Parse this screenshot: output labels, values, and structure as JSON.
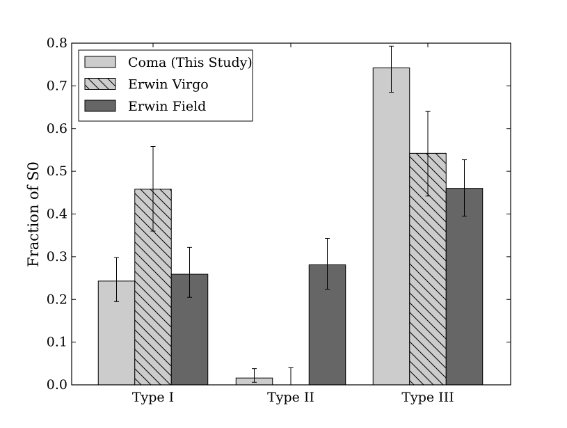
{
  "chart_data": {
    "type": "bar",
    "categories": [
      "Type I",
      "Type II",
      "Type III"
    ],
    "ylabel": "Fraction of S0",
    "xlabel": "",
    "ylim": [
      0,
      0.8
    ],
    "yticks": [
      "0.0",
      "0.1",
      "0.2",
      "0.3",
      "0.4",
      "0.5",
      "0.6",
      "0.7",
      "0.8"
    ],
    "legend_position": "top-left",
    "grid": false,
    "series": [
      {
        "name": "Coma (This Study)",
        "color": "#cccccc",
        "hatch": "none",
        "values": [
          0.243,
          0.016,
          0.742
        ],
        "err_low": [
          0.195,
          0.006,
          0.685
        ],
        "err_high": [
          0.298,
          0.038,
          0.793
        ]
      },
      {
        "name": "Erwin Virgo",
        "color": "#cccccc",
        "hatch": "diagonal",
        "values": [
          0.458,
          0.0,
          0.542
        ],
        "err_low": [
          0.36,
          0.0,
          0.442
        ],
        "err_high": [
          0.558,
          0.04,
          0.64
        ]
      },
      {
        "name": "Erwin Field",
        "color": "#666666",
        "hatch": "none",
        "values": [
          0.259,
          0.281,
          0.46
        ],
        "err_low": [
          0.205,
          0.224,
          0.395
        ],
        "err_high": [
          0.322,
          0.343,
          0.527
        ]
      }
    ]
  }
}
